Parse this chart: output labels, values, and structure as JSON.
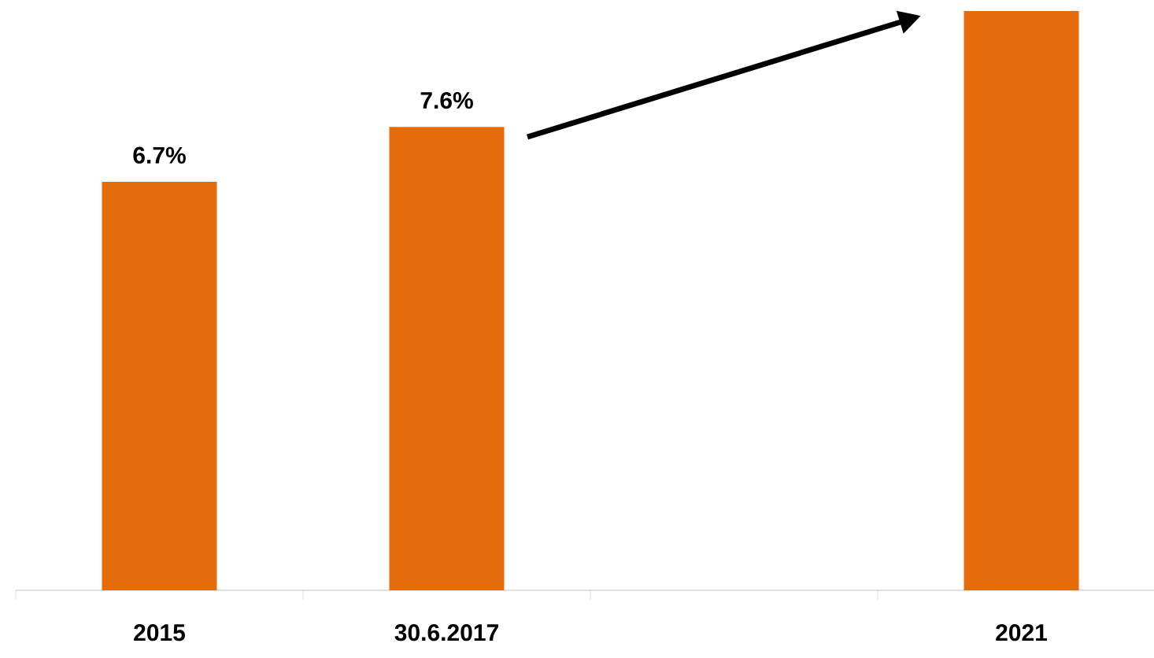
{
  "chart_data": {
    "type": "bar",
    "categories": [
      "2015",
      "30.6.2017",
      null,
      "2021"
    ],
    "values": [
      6.7,
      7.6,
      null,
      9.5
    ],
    "value_labels": [
      "6.7%",
      "7.6%",
      null,
      null
    ],
    "color": "#e46c0a",
    "tick_labels": "x"
  }
}
